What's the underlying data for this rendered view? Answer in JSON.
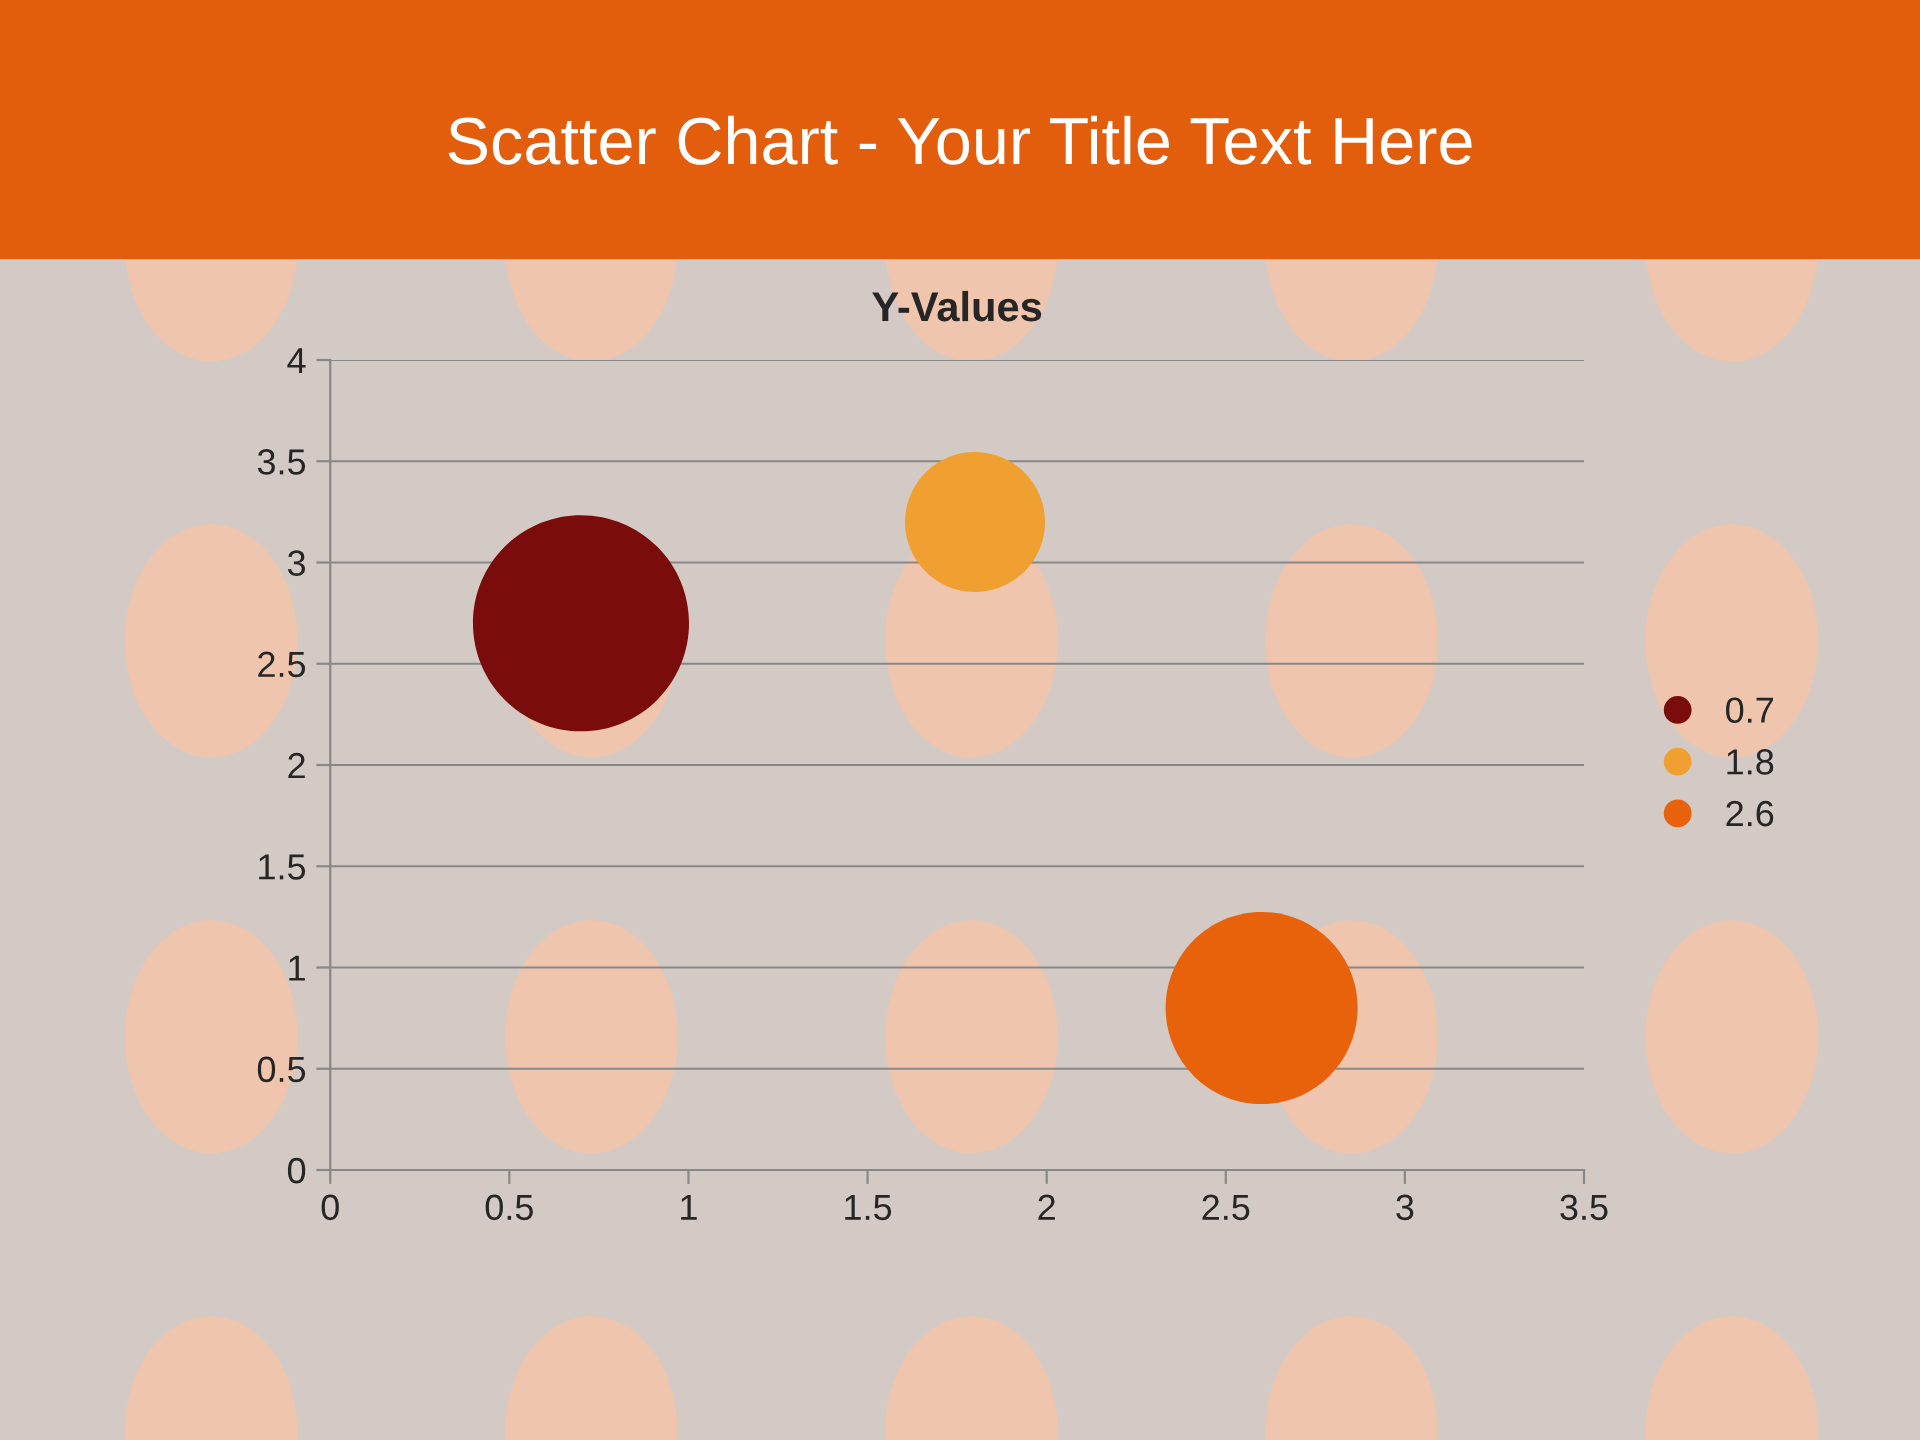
{
  "chart_data": {
    "type": "bubble",
    "title": "Scatter Chart - Your Title Text Here",
    "subtitle": "Y-Values",
    "series": [
      {
        "name": "0.7",
        "color": "#7a0c0c",
        "x": [
          0.7
        ],
        "values": [
          2.7
        ],
        "sizes": [
          1
        ]
      },
      {
        "name": "1.8",
        "color": "#f0a030",
        "x": [
          1.8
        ],
        "values": [
          3.2
        ],
        "sizes": [
          0.42
        ]
      },
      {
        "name": "2.6",
        "color": "#e8620c",
        "x": [
          2.6
        ],
        "values": [
          0.8
        ],
        "sizes": [
          0.79
        ]
      }
    ],
    "xlim": [
      0,
      3.5
    ],
    "xticks": [
      0,
      0.5,
      1,
      1.5,
      2,
      2.5,
      3,
      3.5
    ],
    "ylim": [
      0,
      4
    ],
    "yticks": [
      0,
      0.5,
      1,
      1.5,
      2,
      2.5,
      3,
      3.5,
      4
    ],
    "grid": "y",
    "legend": "right",
    "relative": false
  }
}
